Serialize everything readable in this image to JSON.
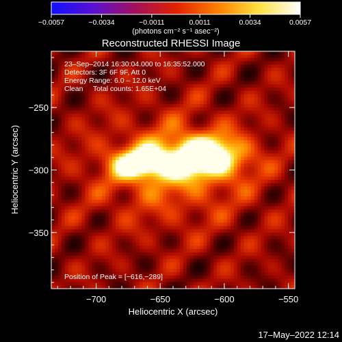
{
  "chart_data": {
    "type": "heatmap",
    "title": "Reconstructed RHESSI Image",
    "xlabel": "Heliocentric X (arcsec)",
    "ylabel": "Heliocentric Y (arcsec)",
    "xlim": [
      -735,
      -545
    ],
    "ylim": [
      -395,
      -205
    ],
    "x_ticks": [
      -700,
      -650,
      -600,
      -550
    ],
    "y_ticks": [
      -250,
      -300,
      -350
    ],
    "x_tick_labels": [
      "−700",
      "−650",
      "−600",
      "−550"
    ],
    "y_tick_labels": [
      "−250",
      "−300",
      "−350"
    ],
    "colorbar": {
      "range": [
        -0.0057,
        0.0057
      ],
      "ticks": [
        -0.0057,
        -0.0034,
        -0.0011,
        0.0011,
        0.0034,
        0.0057
      ],
      "tick_labels": [
        "−0.0057",
        "−0.0034",
        "−0.0011",
        "0.0011",
        "0.0034",
        "0.0057"
      ],
      "unit_label": "(photons cm⁻² s⁻¹ asec⁻²)",
      "colors": [
        "#1010ff",
        "#5a10d0",
        "#a01060",
        "#e02000",
        "#ff8000",
        "#ffe040",
        "#ffffff"
      ]
    },
    "peak": {
      "x": -616,
      "y": -289
    },
    "annotations": [
      "23–Sep–2014 16:30:04.000 to 16:35:52.000",
      "Detectors: 3F 6F 9F, Att 0",
      "Energy Range: 6.0 – 12.0 keV",
      "Clean     Total counts: 1.65E+04",
      "Position of Peak = [−616,−289]"
    ]
  },
  "footer": {
    "timestamp": "17–May–2022 12:14"
  }
}
